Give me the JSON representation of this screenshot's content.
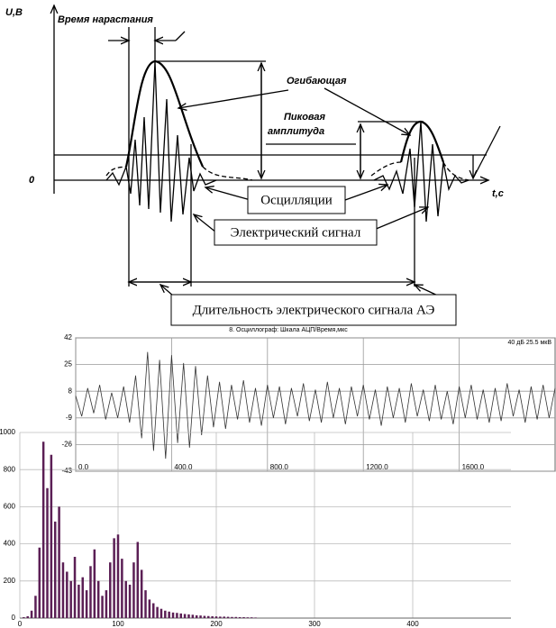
{
  "diagram": {
    "y_axis_label": "U,B",
    "zero_label": "0",
    "x_axis_label": "t,c",
    "rise_time": "Время нарастания",
    "envelope": "Огибающая",
    "peak_amplitude_1": "Пиковая",
    "peak_amplitude_2": "амплитуда",
    "oscillations": "Осцилляции",
    "electric_signal": "Электрический сигнал",
    "duration": "Длительность  электрического сигнала АЭ"
  },
  "chart_data": [
    {
      "type": "line",
      "title": "8. Осциллограф: Шкала АЦП/Время,мкс",
      "annotation": "40 дБ 25.5 мкВ",
      "color": "#333333",
      "grid": true,
      "xlim": [
        0,
        2000
      ],
      "xticks": [
        {
          "value": 0,
          "label": "0.0"
        },
        {
          "value": 400,
          "label": "400.0"
        },
        {
          "value": 800,
          "label": "800.0"
        },
        {
          "value": 1200,
          "label": "1200.0"
        },
        {
          "value": 1600,
          "label": "1600.0"
        }
      ],
      "ylim": [
        -43,
        42
      ],
      "yticks": [
        42,
        25,
        8,
        -9,
        -26,
        -43
      ],
      "x": [
        0,
        25,
        50,
        75,
        100,
        125,
        150,
        175,
        200,
        225,
        250,
        275,
        300,
        325,
        350,
        375,
        400,
        425,
        450,
        475,
        500,
        525,
        550,
        575,
        600,
        625,
        650,
        675,
        700,
        725,
        750,
        775,
        800,
        825,
        850,
        875,
        900,
        925,
        950,
        975,
        1000,
        1025,
        1050,
        1075,
        1100,
        1125,
        1150,
        1175,
        1200,
        1225,
        1250,
        1275,
        1300,
        1325,
        1350,
        1375,
        1400,
        1425,
        1450,
        1475,
        1500,
        1525,
        1550,
        1575,
        1600,
        1625,
        1650,
        1675,
        1700,
        1725,
        1750,
        1775,
        1800,
        1825,
        1850,
        1875,
        1900,
        1925,
        1950,
        1975,
        2000
      ],
      "values": [
        5,
        -8,
        10,
        -6,
        12,
        -10,
        7,
        -9,
        11,
        -12,
        18,
        -22,
        33,
        -30,
        28,
        -35,
        31,
        -25,
        26,
        -28,
        24,
        -20,
        18,
        -15,
        14,
        -16,
        12,
        -10,
        15,
        -12,
        10,
        -14,
        12,
        -9,
        11,
        -13,
        10,
        -8,
        13,
        -11,
        9,
        -12,
        14,
        -9,
        10,
        -13,
        11,
        -8,
        12,
        -10,
        9,
        -14,
        11,
        -9,
        10,
        -12,
        13,
        -8,
        9,
        -11,
        12,
        -10,
        8,
        -13,
        11,
        -9,
        12,
        -10,
        9,
        -12,
        10,
        -11,
        13,
        -8,
        9,
        -12,
        11,
        -10,
        12,
        -9,
        10
      ]
    },
    {
      "type": "bar",
      "color": "#5b1f55",
      "grid": true,
      "xlim": [
        0,
        500
      ],
      "xticks": [
        0,
        100,
        200,
        300,
        400
      ],
      "ylim": [
        0,
        1000
      ],
      "yticks": [
        0,
        200,
        400,
        600,
        800,
        1000
      ],
      "x": [
        4,
        8,
        12,
        16,
        20,
        24,
        28,
        32,
        36,
        40,
        44,
        48,
        52,
        56,
        60,
        64,
        68,
        72,
        76,
        80,
        84,
        88,
        92,
        96,
        100,
        104,
        108,
        112,
        116,
        120,
        124,
        128,
        132,
        136,
        140,
        144,
        148,
        152,
        156,
        160,
        164,
        168,
        172,
        176,
        180,
        184,
        188,
        192,
        196,
        200,
        204,
        208,
        212,
        216,
        220,
        224,
        228,
        232,
        236,
        240
      ],
      "values": [
        5,
        10,
        40,
        120,
        380,
        950,
        700,
        880,
        520,
        600,
        300,
        250,
        200,
        330,
        180,
        220,
        150,
        280,
        370,
        200,
        120,
        150,
        300,
        430,
        450,
        320,
        200,
        180,
        300,
        410,
        260,
        150,
        100,
        80,
        60,
        50,
        40,
        35,
        30,
        28,
        25,
        22,
        20,
        18,
        15,
        14,
        12,
        11,
        10,
        9,
        8,
        8,
        7,
        6,
        6,
        5,
        5,
        4,
        4,
        3
      ]
    }
  ]
}
